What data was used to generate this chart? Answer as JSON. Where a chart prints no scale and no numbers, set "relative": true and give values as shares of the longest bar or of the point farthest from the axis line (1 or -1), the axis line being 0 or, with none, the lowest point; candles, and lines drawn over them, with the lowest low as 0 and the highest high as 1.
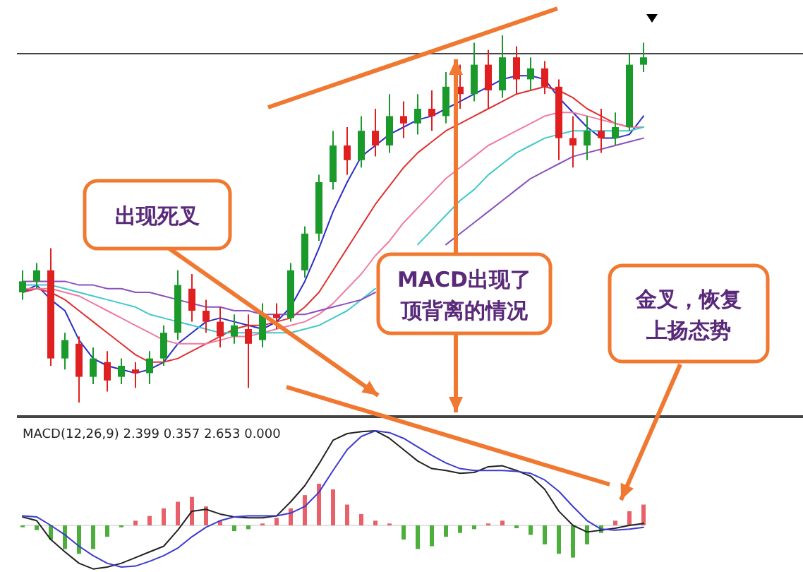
{
  "chart_data": [
    {
      "type": "candlestick",
      "relative": true,
      "categories": [
        null,
        null,
        null,
        null,
        null,
        null,
        null,
        null,
        null,
        null,
        null,
        null,
        null,
        null,
        null,
        null,
        null,
        null,
        null,
        null,
        null,
        null,
        null,
        null,
        null,
        null,
        null,
        null,
        null,
        null,
        null,
        null,
        null,
        null,
        null,
        null,
        null,
        null,
        null,
        null,
        null,
        null,
        null,
        null,
        null
      ],
      "ohlc": [
        [
          0.3,
          0.36,
          0.28,
          0.33
        ],
        [
          0.33,
          0.38,
          0.31,
          0.36
        ],
        [
          0.36,
          0.42,
          0.1,
          0.12
        ],
        [
          0.12,
          0.19,
          0.09,
          0.17
        ],
        [
          0.16,
          0.18,
          0.0,
          0.07
        ],
        [
          0.07,
          0.15,
          0.05,
          0.12
        ],
        [
          0.11,
          0.14,
          0.03,
          0.06
        ],
        [
          0.07,
          0.12,
          0.05,
          0.1
        ],
        [
          0.09,
          0.11,
          0.04,
          0.08
        ],
        [
          0.08,
          0.14,
          0.05,
          0.12
        ],
        [
          0.12,
          0.21,
          0.1,
          0.19
        ],
        [
          0.19,
          0.36,
          0.17,
          0.32
        ],
        [
          0.31,
          0.35,
          0.22,
          0.25
        ],
        [
          0.25,
          0.28,
          0.19,
          0.22
        ],
        [
          0.22,
          0.26,
          0.15,
          0.18
        ],
        [
          0.18,
          0.24,
          0.16,
          0.21
        ],
        [
          0.2,
          0.24,
          0.04,
          0.16
        ],
        [
          0.17,
          0.27,
          0.15,
          0.24
        ],
        [
          0.24,
          0.27,
          0.2,
          0.23
        ],
        [
          0.23,
          0.38,
          0.22,
          0.36
        ],
        [
          0.36,
          0.48,
          0.34,
          0.46
        ],
        [
          0.46,
          0.62,
          0.44,
          0.6
        ],
        [
          0.6,
          0.74,
          0.58,
          0.7
        ],
        [
          0.7,
          0.75,
          0.62,
          0.66
        ],
        [
          0.66,
          0.78,
          0.64,
          0.74
        ],
        [
          0.74,
          0.8,
          0.67,
          0.7
        ],
        [
          0.7,
          0.84,
          0.68,
          0.78
        ],
        [
          0.78,
          0.82,
          0.72,
          0.76
        ],
        [
          0.76,
          0.84,
          0.73,
          0.8
        ],
        [
          0.8,
          0.85,
          0.74,
          0.78
        ],
        [
          0.78,
          0.9,
          0.76,
          0.86
        ],
        [
          0.86,
          0.92,
          0.8,
          0.84
        ],
        [
          0.84,
          0.98,
          0.82,
          0.92
        ],
        [
          0.92,
          0.96,
          0.8,
          0.85
        ],
        [
          0.85,
          1.0,
          0.83,
          0.94
        ],
        [
          0.94,
          0.97,
          0.84,
          0.88
        ],
        [
          0.88,
          0.94,
          0.85,
          0.91
        ],
        [
          0.91,
          0.93,
          0.84,
          0.86
        ],
        [
          0.86,
          0.88,
          0.66,
          0.72
        ],
        [
          0.72,
          0.78,
          0.64,
          0.7
        ],
        [
          0.7,
          0.78,
          0.66,
          0.74
        ],
        [
          0.74,
          0.8,
          0.68,
          0.72
        ],
        [
          0.72,
          0.79,
          0.7,
          0.75
        ],
        [
          0.75,
          0.95,
          0.74,
          0.92
        ],
        [
          0.92,
          0.98,
          0.9,
          0.94
        ]
      ],
      "colors": [
        "#1a9a2a",
        "#1a9a2a",
        "#e02020",
        "#1a9a2a",
        "#e02020",
        "#1a9a2a",
        "#e02020",
        "#1a9a2a",
        "#e02020",
        "#1a9a2a",
        "#1a9a2a",
        "#1a9a2a",
        "#e02020",
        "#e02020",
        "#e02020",
        "#1a9a2a",
        "#e02020",
        "#1a9a2a",
        "#e02020",
        "#1a9a2a",
        "#1a9a2a",
        "#1a9a2a",
        "#1a9a2a",
        "#e02020",
        "#1a9a2a",
        "#e02020",
        "#1a9a2a",
        "#e02020",
        "#1a9a2a",
        "#e02020",
        "#1a9a2a",
        "#e02020",
        "#1a9a2a",
        "#e02020",
        "#1a9a2a",
        "#e02020",
        "#1a9a2a",
        "#e02020",
        "#e02020",
        "#e02020",
        "#1a9a2a",
        "#e02020",
        "#1a9a2a",
        "#1a9a2a",
        "#1a9a2a"
      ],
      "series": [
        {
          "type": "line",
          "color": "#2c2cc8",
          "values": [
            0.3,
            0.32,
            0.28,
            0.25,
            0.17,
            0.12,
            0.1,
            0.09,
            0.08,
            0.09,
            0.11,
            0.16,
            0.19,
            0.22,
            0.23,
            0.22,
            0.21,
            0.2,
            0.22,
            0.26,
            0.33,
            0.42,
            0.52,
            0.6,
            0.67,
            0.7,
            0.73,
            0.75,
            0.77,
            0.78,
            0.8,
            0.82,
            0.84,
            0.86,
            0.88,
            0.89,
            0.89,
            0.88,
            0.83,
            0.79,
            0.75,
            0.72,
            0.72,
            0.73,
            0.78
          ]
        },
        {
          "type": "line",
          "color": "#e03030",
          "values": [
            0.3,
            0.31,
            0.3,
            0.28,
            0.25,
            0.22,
            0.19,
            0.16,
            0.13,
            0.11,
            0.11,
            0.12,
            0.14,
            0.16,
            0.18,
            0.2,
            0.21,
            0.21,
            0.22,
            0.23,
            0.26,
            0.3,
            0.36,
            0.42,
            0.48,
            0.54,
            0.59,
            0.64,
            0.68,
            0.71,
            0.74,
            0.76,
            0.78,
            0.8,
            0.82,
            0.84,
            0.85,
            0.86,
            0.85,
            0.83,
            0.8,
            0.78,
            0.76,
            0.75,
            0.75
          ]
        },
        {
          "type": "line",
          "color": "#f07aa0",
          "values": [
            0.31,
            0.31,
            0.31,
            0.3,
            0.29,
            0.27,
            0.25,
            0.23,
            0.21,
            0.19,
            0.17,
            0.16,
            0.16,
            0.16,
            0.17,
            0.18,
            0.18,
            0.19,
            0.2,
            0.21,
            0.22,
            0.24,
            0.27,
            0.31,
            0.35,
            0.4,
            0.44,
            0.49,
            0.53,
            0.57,
            0.61,
            0.64,
            0.67,
            0.7,
            0.72,
            0.74,
            0.76,
            0.78,
            0.79,
            0.79,
            0.78,
            0.77,
            0.76,
            0.75,
            0.75
          ]
        },
        {
          "type": "line",
          "color": "#40c8c8",
          "values": [
            0.32,
            0.32,
            0.32,
            0.31,
            0.3,
            0.29,
            0.28,
            0.27,
            0.26,
            0.24,
            0.23,
            0.22,
            0.21,
            0.2,
            0.19,
            0.19,
            0.19,
            0.19,
            0.19,
            0.19,
            0.2,
            0.21,
            0.23,
            0.25,
            0.28,
            0.31,
            null,
            null,
            0.43,
            0.47,
            0.51,
            0.55,
            0.58,
            0.62,
            0.65,
            0.68,
            0.7,
            0.72,
            0.73,
            0.74,
            0.74,
            0.74,
            0.74,
            0.74,
            0.75
          ]
        },
        {
          "type": "line",
          "color": "#8a50c0",
          "values": [
            0.33,
            0.33,
            0.33,
            0.33,
            0.32,
            0.32,
            0.31,
            0.31,
            0.3,
            0.3,
            0.29,
            0.28,
            0.27,
            0.26,
            0.26,
            0.25,
            0.25,
            0.24,
            0.24,
            0.24,
            0.24,
            0.25,
            0.26,
            0.27,
            0.28,
            0.3,
            null,
            null,
            null,
            null,
            0.43,
            0.46,
            0.49,
            0.52,
            0.55,
            0.58,
            0.61,
            0.63,
            0.65,
            0.67,
            0.68,
            0.69,
            0.7,
            0.71,
            0.72
          ]
        }
      ],
      "ref_lines": [
        {
          "axis": "y",
          "value": 0.95,
          "color": "#444444"
        }
      ],
      "annotations": [
        "出现死叉",
        "MACD出现了顶背离的情况",
        "金叉，恢复上扬态势"
      ]
    },
    {
      "type": "line",
      "relative": true,
      "title": "MACD(12,26,9) 2.399 0.357 2.653 0.000",
      "categories": [
        null,
        null,
        null,
        null,
        null,
        null,
        null,
        null,
        null,
        null,
        null,
        null,
        null,
        null,
        null,
        null,
        null,
        null,
        null,
        null,
        null,
        null,
        null,
        null,
        null,
        null,
        null,
        null,
        null,
        null,
        null,
        null,
        null,
        null,
        null,
        null,
        null,
        null,
        null,
        null,
        null,
        null,
        null,
        null,
        null
      ],
      "series": [
        {
          "type": "bar",
          "values": [
            -0.02,
            -0.05,
            -0.15,
            -0.25,
            -0.3,
            -0.25,
            -0.12,
            -0.02,
            0.05,
            0.1,
            0.18,
            0.25,
            0.3,
            0.2,
            0.05,
            -0.06,
            -0.04,
            0.02,
            0.08,
            0.18,
            0.32,
            0.44,
            0.38,
            0.22,
            0.12,
            0.05,
            0.02,
            -0.15,
            -0.25,
            -0.22,
            -0.12,
            -0.08,
            -0.04,
            0.02,
            0.05,
            -0.03,
            -0.1,
            -0.2,
            -0.3,
            -0.34,
            -0.2,
            -0.08,
            0.05,
            0.15,
            0.22
          ],
          "colors": [
            "#4caf3c",
            "#4caf3c",
            "#4caf3c",
            "#4caf3c",
            "#4caf3c",
            "#4caf3c",
            "#4caf3c",
            "#4caf3c",
            "#e8606a",
            "#e8606a",
            "#e8606a",
            "#e8606a",
            "#e8606a",
            "#e8606a",
            "#e8606a",
            "#4caf3c",
            "#4caf3c",
            "#e8606a",
            "#e8606a",
            "#e8606a",
            "#e8606a",
            "#e8606a",
            "#e8606a",
            "#e8606a",
            "#e8606a",
            "#e8606a",
            "#e8606a",
            "#4caf3c",
            "#4caf3c",
            "#4caf3c",
            "#4caf3c",
            "#4caf3c",
            "#4caf3c",
            "#e8606a",
            "#e8606a",
            "#4caf3c",
            "#4caf3c",
            "#4caf3c",
            "#4caf3c",
            "#4caf3c",
            "#4caf3c",
            "#4caf3c",
            "#e8606a",
            "#e8606a",
            "#e8606a"
          ]
        },
        {
          "type": "line",
          "color": "#222222",
          "values": [
            0.09,
            0.05,
            -0.15,
            -0.28,
            -0.4,
            -0.46,
            -0.44,
            -0.4,
            -0.34,
            -0.28,
            -0.22,
            -0.05,
            0.15,
            0.17,
            0.12,
            0.09,
            0.08,
            0.08,
            0.1,
            0.25,
            0.42,
            0.65,
            0.9,
            0.97,
            0.99,
            1.0,
            0.92,
            0.8,
            0.68,
            0.6,
            0.58,
            0.55,
            0.56,
            0.62,
            0.63,
            0.58,
            0.52,
            0.38,
            0.15,
            0.0,
            -0.07,
            -0.05,
            -0.03,
            0.0,
            0.02
          ]
        },
        {
          "type": "line",
          "color": "#3a3ad0",
          "values": [
            0.1,
            0.09,
            0.0,
            -0.1,
            -0.22,
            -0.32,
            -0.4,
            -0.44,
            -0.43,
            -0.38,
            -0.32,
            -0.24,
            -0.12,
            -0.02,
            0.05,
            0.09,
            0.1,
            0.1,
            0.1,
            0.13,
            0.2,
            0.35,
            0.58,
            0.8,
            0.94,
            1.0,
            0.98,
            0.92,
            0.83,
            0.74,
            0.66,
            0.6,
            0.58,
            0.58,
            0.58,
            0.57,
            0.55,
            0.48,
            0.36,
            0.2,
            0.05,
            -0.04,
            -0.05,
            -0.04,
            -0.02
          ]
        }
      ]
    }
  ]
}
